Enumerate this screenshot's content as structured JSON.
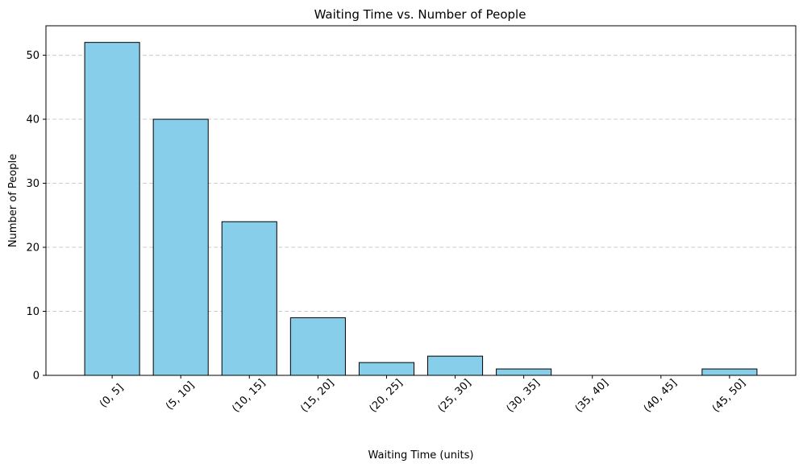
{
  "chart_data": {
    "type": "bar",
    "title": "Waiting Time vs. Number of People",
    "xlabel": "Waiting Time (units)",
    "ylabel": "Number of People",
    "categories": [
      "(0, 5]",
      "(5, 10]",
      "(10, 15]",
      "(15, 20]",
      "(20, 25]",
      "(25, 30]",
      "(30, 35]",
      "(35, 40]",
      "(40, 45]",
      "(45, 50]"
    ],
    "values": [
      52,
      40,
      24,
      9,
      2,
      3,
      1,
      0,
      0,
      1
    ],
    "ylim": [
      0,
      54.6
    ],
    "yticks": [
      0,
      10,
      20,
      30,
      40,
      50
    ],
    "grid": "y-dashed",
    "legend": "none",
    "x_tick_rotation_deg": 45,
    "colors": {
      "bar_fill": "#87ceeb",
      "bar_edge": "#000000",
      "grid": "#cccccc",
      "axes": "#000000"
    }
  }
}
